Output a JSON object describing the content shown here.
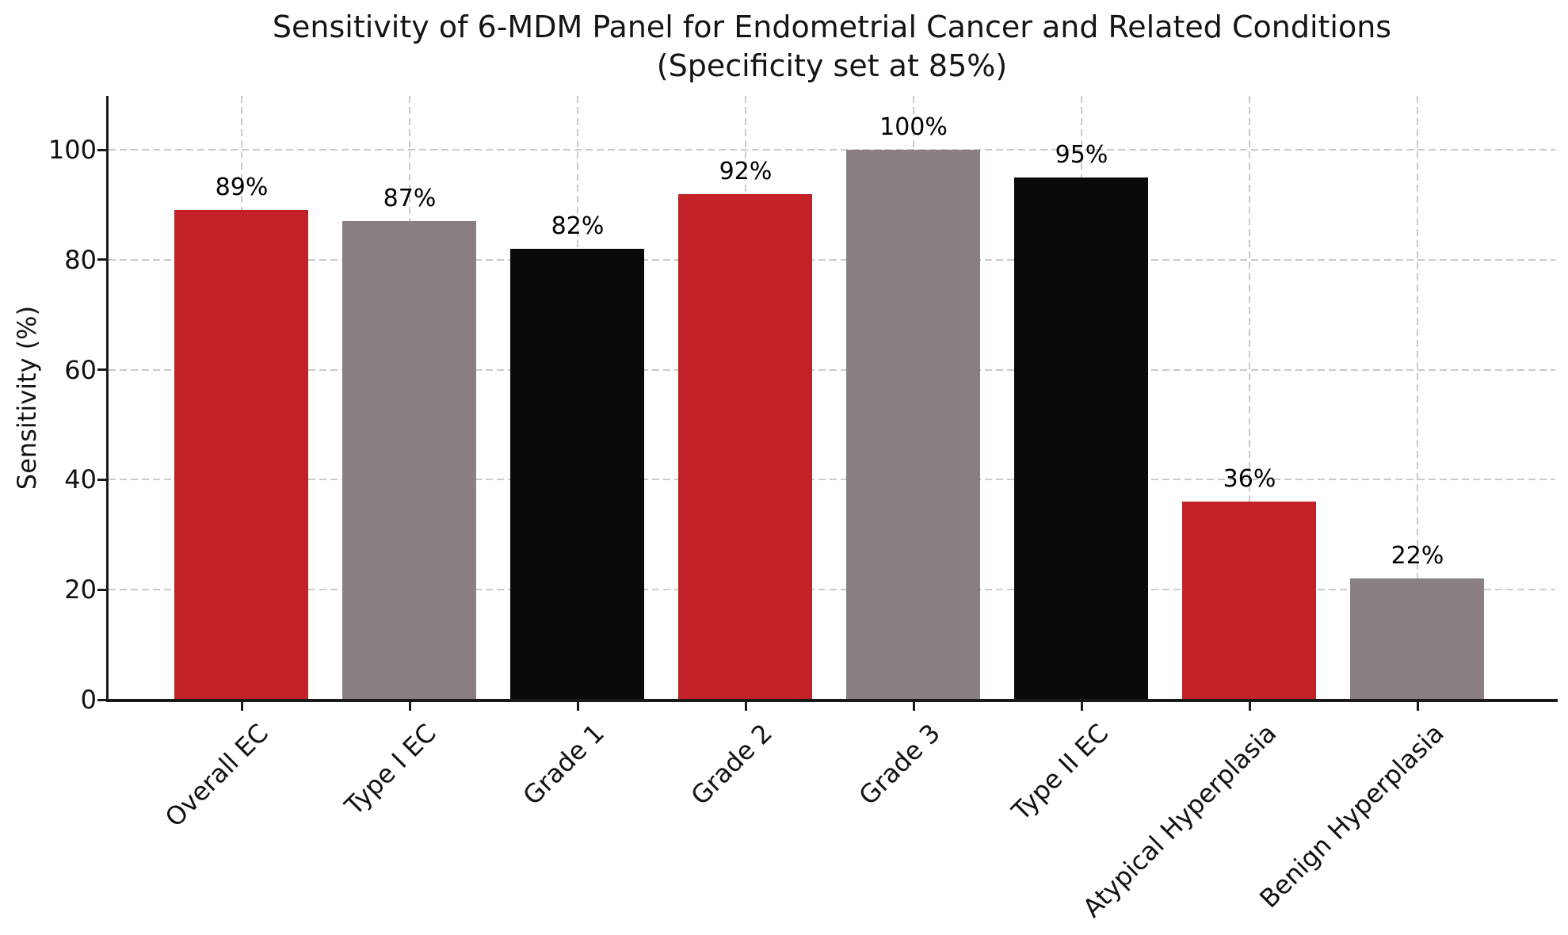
{
  "title": {
    "line1": "Sensitivity of 6-MDM Panel for Endometrial Cancer and Related Conditions",
    "line2": "(Specificity set at 85%)"
  },
  "chart_data": {
    "type": "bar",
    "title": "Sensitivity of 6-MDM Panel for Endometrial Cancer and Related Conditions (Specificity set at 85%)",
    "xlabel": "",
    "ylabel": "Sensitivity (%)",
    "categories": [
      "Overall EC",
      "Type I EC",
      "Grade 1",
      "Grade 2",
      "Grade 3",
      "Type II EC",
      "Atypical Hyperplasia",
      "Benign Hyperplasia"
    ],
    "values": [
      89,
      87,
      82,
      92,
      100,
      95,
      36,
      22
    ],
    "value_labels": [
      "89%",
      "87%",
      "82%",
      "92%",
      "100%",
      "95%",
      "36%",
      "22%"
    ],
    "bar_colors": [
      "#c22127",
      "#8a8084",
      "#0a0a0a",
      "#c22127",
      "#8a8084",
      "#0a0a0a",
      "#c22127",
      "#8a8084"
    ],
    "yticks": [
      0,
      20,
      40,
      60,
      80,
      100
    ],
    "ytick_labels": [
      "0",
      "20",
      "40",
      "60",
      "80",
      "100"
    ],
    "ylim": [
      0,
      110
    ],
    "grid": "dashed gray, horizontal at yticks and vertical at each category",
    "legend": "none"
  },
  "colors": {
    "bar_red": "#c22127",
    "bar_gray": "#8a8084",
    "bar_black": "#0a0a0a",
    "grid": "#cbcbcb",
    "spine": "#1a1a1a",
    "background": "#ffffff",
    "text": "#111111"
  }
}
